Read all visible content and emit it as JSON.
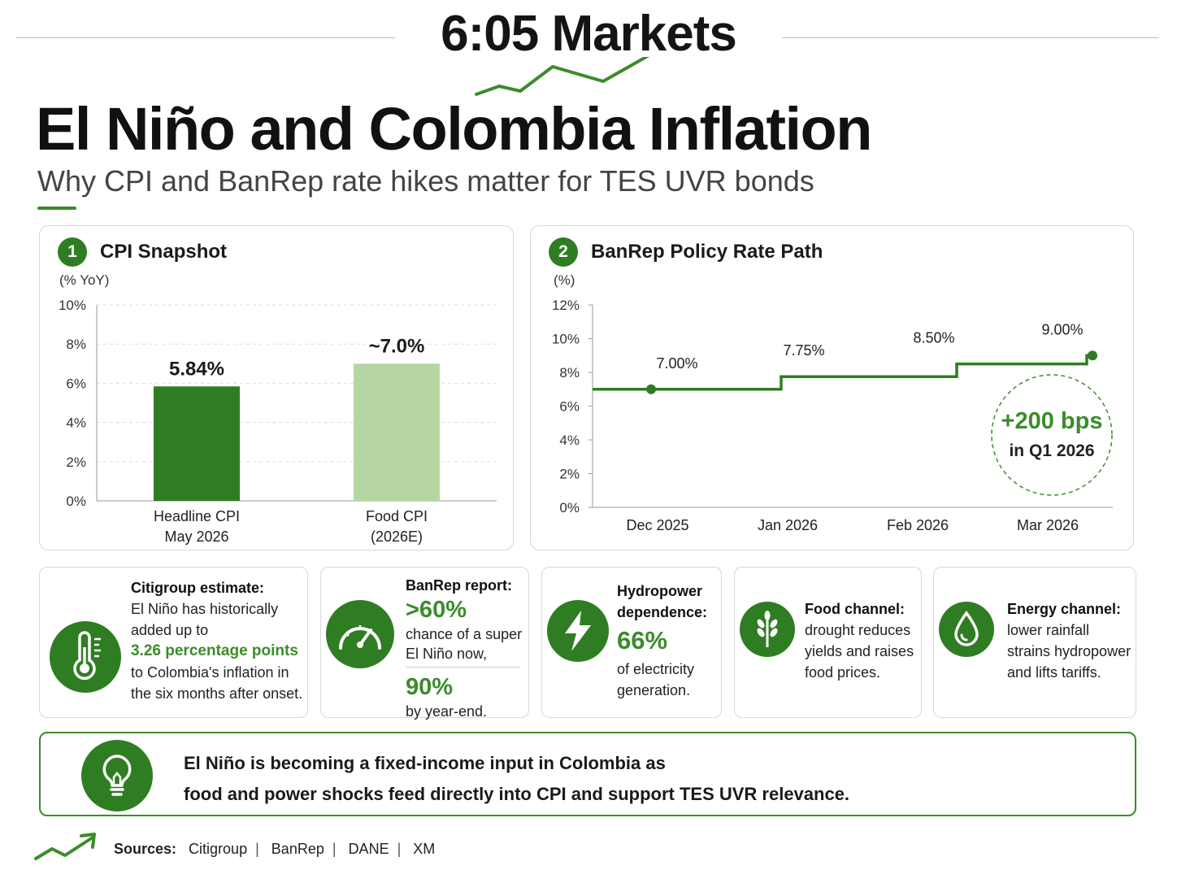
{
  "header": {
    "brand": "6:05 Markets",
    "title": "El Niño and Colombia Inflation",
    "subtitle": "Why CPI and BanRep rate hikes matter for TES UVR bonds"
  },
  "colors": {
    "accent": "#2f7d22",
    "accent_light": "#b5d6a1",
    "text": "#1a1a1a"
  },
  "cpi_card": {
    "badge": "1",
    "title": "CPI Snapshot"
  },
  "rate_card": {
    "badge": "2",
    "title": "BanRep Policy Rate Path",
    "callout_value": "+200 bps",
    "callout_label": "in Q1 2026"
  },
  "chart_data": [
    {
      "type": "bar",
      "title": "CPI Snapshot",
      "ylabel": "(% YoY)",
      "ylim": [
        0,
        10
      ],
      "yticks": [
        0,
        2,
        4,
        6,
        8,
        10
      ],
      "ytick_labels": [
        "0%",
        "2%",
        "4%",
        "6%",
        "8%",
        "10%"
      ],
      "grid": true,
      "categories": [
        "Headline CPI\nMay 2026",
        "Food CPI\n(2026E)"
      ],
      "values": [
        5.84,
        7.0
      ],
      "value_labels": [
        "5.84%",
        "~7.0%"
      ],
      "bar_colors": [
        "#2f7d22",
        "#b5d6a1"
      ]
    },
    {
      "type": "line",
      "title": "BanRep Policy Rate Path",
      "ylabel": "(%)",
      "ylim": [
        0,
        12
      ],
      "yticks": [
        0,
        2,
        4,
        6,
        8,
        10,
        12
      ],
      "ytick_labels": [
        "0%",
        "2%",
        "4%",
        "6%",
        "8%",
        "10%",
        "12%"
      ],
      "step": true,
      "xtick_labels": [
        "Dec 2025",
        "Jan 2026",
        "Feb 2026",
        "Mar 2026"
      ],
      "series": [
        {
          "x": [
            "Dec 2025",
            "Dec 2025",
            "Jan 2026",
            "Jan 2026",
            "Feb 2026",
            "Mar 2026"
          ],
          "values": [
            7.0,
            7.0,
            7.75,
            7.75,
            8.5,
            9.0
          ]
        }
      ],
      "annotations": [
        "7.00%",
        "7.75%",
        "8.50%",
        "9.00%"
      ]
    }
  ],
  "info_cards": {
    "citi": {
      "heading": "Citigroup estimate:",
      "line1": "El Niño has historically",
      "line2": "added up to",
      "highlight": "3.26 percentage points",
      "line3": "to Colombia's inflation in",
      "line4": "the six months after onset."
    },
    "banrep": {
      "heading": "BanRep report:",
      "stat1": ">60%",
      "text1a": "chance of a super",
      "text1b": "El Niño now,",
      "stat2": "90%",
      "text2": "by year-end."
    },
    "hydro": {
      "heading1": "Hydropower",
      "heading2": "dependence:",
      "stat": "66%",
      "text1": "of electricity",
      "text2": "generation."
    },
    "food": {
      "heading": "Food channel:",
      "line1": "drought reduces",
      "line2": "yields and raises",
      "line3": "food prices."
    },
    "energy": {
      "heading": "Energy channel:",
      "line1": "lower rainfall",
      "line2": "strains hydropower",
      "line3": "and lifts tariffs."
    }
  },
  "takeaway": {
    "line1": "El Niño is becoming a fixed-income input in Colombia as",
    "line2": "food and power shocks feed directly into CPI and support TES UVR relevance."
  },
  "sources": {
    "label": "Sources:",
    "items": [
      "Citigroup",
      "BanRep",
      "DANE",
      "XM"
    ]
  }
}
